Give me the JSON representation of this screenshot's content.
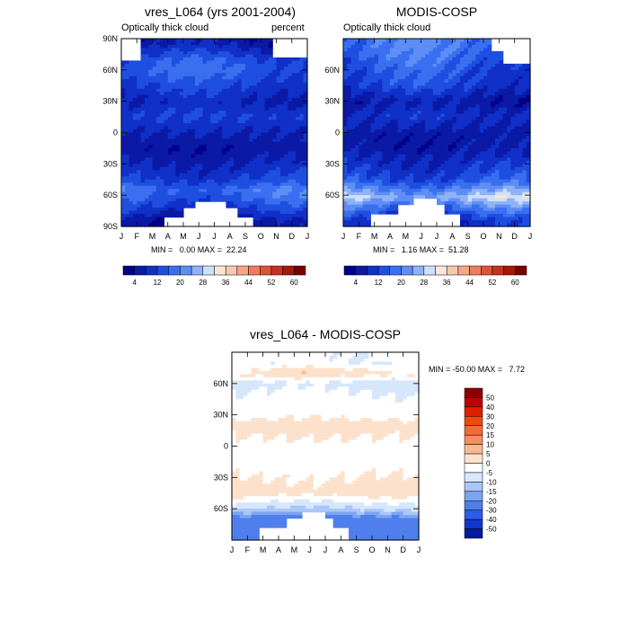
{
  "figure": {
    "panel1": {
      "title": "vres_L064 (yrs 2001-2004)",
      "left_label": "Optically thick cloud",
      "right_label": "percent",
      "stats": "MIN =   0.00 MAX =  22.24"
    },
    "panel2": {
      "title": "MODIS-COSP",
      "left_label": "Optically thick cloud",
      "stats": "MIN =   1.16 MAX =  51.28"
    },
    "panel3": {
      "title": "vres_L064 - MODIS-COSP",
      "stats": "MIN = -50.00 MAX =   7.72"
    }
  },
  "chart_data": [
    {
      "type": "heatmap",
      "name": "vres_L064",
      "title": "vres_L064 (yrs 2001-2004)",
      "subtitle_left": "Optically thick cloud",
      "subtitle_right": "percent",
      "x_ticks": [
        "J",
        "F",
        "M",
        "A",
        "M",
        "J",
        "J",
        "A",
        "S",
        "O",
        "N",
        "D",
        "J"
      ],
      "y_ticks": [
        "90N",
        "60N",
        "30N",
        "0",
        "30S",
        "60S",
        "90S"
      ],
      "ylim": [
        -90,
        90
      ],
      "min": 0.0,
      "max": 22.24,
      "colorbar_labels": [
        "4",
        "12",
        "20",
        "28",
        "36",
        "44",
        "52",
        "60"
      ],
      "latitude_profile": [
        {
          "lat": 85,
          "value": 6
        },
        {
          "lat": 70,
          "value": 14
        },
        {
          "lat": 60,
          "value": 16
        },
        {
          "lat": 45,
          "value": 12
        },
        {
          "lat": 30,
          "value": 8
        },
        {
          "lat": 15,
          "value": 12
        },
        {
          "lat": 0,
          "value": 8
        },
        {
          "lat": -15,
          "value": 5
        },
        {
          "lat": -30,
          "value": 8
        },
        {
          "lat": -45,
          "value": 12
        },
        {
          "lat": -55,
          "value": 18
        },
        {
          "lat": -62,
          "value": 16
        },
        {
          "lat": -75,
          "value": 10
        },
        {
          "lat": -85,
          "value": 4
        }
      ]
    },
    {
      "type": "heatmap",
      "name": "MODIS-COSP",
      "title": "MODIS-COSP",
      "subtitle_left": "Optically thick cloud",
      "x_ticks": [
        "J",
        "F",
        "M",
        "A",
        "M",
        "J",
        "J",
        "A",
        "S",
        "O",
        "N",
        "D",
        "J"
      ],
      "y_ticks": [
        "60N",
        "30N",
        "0",
        "30S",
        "60S"
      ],
      "ylim": [
        -90,
        90
      ],
      "min": 1.16,
      "max": 51.28,
      "colorbar_labels": [
        "4",
        "12",
        "20",
        "28",
        "36",
        "44",
        "52",
        "60"
      ],
      "latitude_profile": [
        {
          "lat": 80,
          "value": 18
        },
        {
          "lat": 60,
          "value": 14
        },
        {
          "lat": 45,
          "value": 12
        },
        {
          "lat": 30,
          "value": 6
        },
        {
          "lat": 15,
          "value": 10
        },
        {
          "lat": 0,
          "value": 6
        },
        {
          "lat": -15,
          "value": 6
        },
        {
          "lat": -30,
          "value": 10
        },
        {
          "lat": -45,
          "value": 14
        },
        {
          "lat": -55,
          "value": 22
        },
        {
          "lat": -62,
          "value": 28
        },
        {
          "lat": -70,
          "value": 20
        },
        {
          "lat": -85,
          "value": 8
        }
      ]
    },
    {
      "type": "heatmap",
      "name": "difference",
      "title": "vres_L064 - MODIS-COSP",
      "x_ticks": [
        "J",
        "F",
        "M",
        "A",
        "M",
        "J",
        "J",
        "A",
        "S",
        "O",
        "N",
        "D",
        "J"
      ],
      "y_ticks": [
        "60N",
        "30N",
        "0",
        "30S",
        "60S"
      ],
      "ylim": [
        -90,
        90
      ],
      "min": -50.0,
      "max": 7.72,
      "colorbar_labels": [
        "50",
        "40",
        "30",
        "20",
        "15",
        "10",
        "5",
        "0",
        "-5",
        "-10",
        "-15",
        "-20",
        "-30",
        "-40",
        "-50"
      ],
      "colorbar_colors": [
        "#8b0000",
        "#c00000",
        "#e01e00",
        "#f04810",
        "#f56a35",
        "#f88e5e",
        "#fbb791",
        "#fce2cc",
        "#ffffff",
        "#d6e6fb",
        "#a9c6f7",
        "#7ca4f2",
        "#4f7fec",
        "#2c5ce6",
        "#1235d0",
        "#031a9c"
      ],
      "latitude_profile": [
        {
          "lat": 80,
          "value": -5
        },
        {
          "lat": 70,
          "value": 3
        },
        {
          "lat": 60,
          "value": -7
        },
        {
          "lat": 45,
          "value": -3
        },
        {
          "lat": 30,
          "value": -2
        },
        {
          "lat": 20,
          "value": 3
        },
        {
          "lat": 0,
          "value": -2
        },
        {
          "lat": -20,
          "value": -2
        },
        {
          "lat": -45,
          "value": 3
        },
        {
          "lat": -55,
          "value": -6
        },
        {
          "lat": -62,
          "value": -12
        },
        {
          "lat": -70,
          "value": -25
        }
      ]
    }
  ]
}
